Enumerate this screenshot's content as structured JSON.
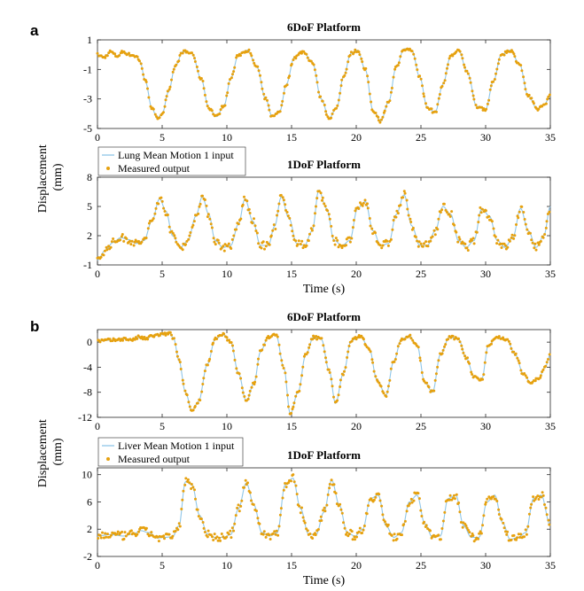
{
  "colors": {
    "input": "#8fc6e8",
    "measured": "#e6a10f",
    "axis": "#262626"
  },
  "chart_data": [
    {
      "id": "a-6dof",
      "panel": "a",
      "type": "line",
      "title": "6DoF Platform",
      "xlabel": "",
      "ylabel": "",
      "xlim": [
        0,
        35
      ],
      "ylim": [
        -5,
        1
      ],
      "xticks": [
        0,
        5,
        10,
        15,
        20,
        25,
        30,
        35
      ],
      "yticks": [
        -5,
        -3,
        -1,
        1
      ],
      "series": [
        {
          "name": "Lung Mean Motion 1 input",
          "style": "line",
          "x": [
            0,
            0.5,
            1,
            1.5,
            2,
            2.5,
            3,
            3.3,
            3.7,
            4.2,
            4.6,
            5.0,
            5.5,
            6.0,
            6.6,
            7.3,
            8.0,
            8.6,
            9.2,
            9.8,
            10.3,
            10.9,
            11.6,
            12.3,
            13.0,
            13.5,
            14.1,
            14.6,
            15.2,
            15.9,
            16.6,
            17.3,
            17.9,
            18.5,
            19.0,
            19.6,
            20.1,
            20.7,
            21.3,
            21.9,
            22.5,
            23.1,
            23.7,
            24.3,
            24.9,
            25.5,
            26.1,
            26.7,
            27.3,
            27.9,
            28.6,
            29.3,
            30.0,
            30.6,
            31.2,
            31.9,
            32.6,
            33.3,
            34.0,
            34.5,
            35
          ],
          "y": [
            0.0,
            -0.2,
            0.2,
            -0.1,
            0.2,
            0.0,
            -0.1,
            -0.5,
            -1.8,
            -3.6,
            -4.3,
            -4.0,
            -2.5,
            -0.8,
            0.2,
            0.1,
            -1.6,
            -3.6,
            -4.2,
            -3.4,
            -1.6,
            0.0,
            0.3,
            -0.8,
            -3.0,
            -4.2,
            -3.8,
            -2.0,
            -0.2,
            0.2,
            -0.5,
            -3.0,
            -4.3,
            -3.6,
            -1.5,
            0.1,
            0.3,
            -1.0,
            -3.8,
            -4.5,
            -3.2,
            -0.8,
            0.4,
            0.3,
            -1.5,
            -3.6,
            -3.9,
            -2.0,
            -0.1,
            0.3,
            -1.2,
            -3.5,
            -3.7,
            -1.8,
            0.0,
            0.3,
            -0.6,
            -2.8,
            -3.7,
            -3.4,
            -2.8
          ]
        },
        {
          "name": "Measured output",
          "style": "points",
          "follows": "Lung Mean Motion 1 input"
        }
      ]
    },
    {
      "id": "a-1dof",
      "panel": "a",
      "type": "line",
      "title": "1DoF Platform",
      "xlabel": "Time (s)",
      "ylabel": "",
      "xlim": [
        0,
        35
      ],
      "ylim": [
        -1,
        8
      ],
      "xticks": [
        0,
        5,
        10,
        15,
        20,
        25,
        30,
        35
      ],
      "yticks": [
        -1,
        2,
        5,
        8
      ],
      "legend": {
        "position": "top-left",
        "entries": [
          "Lung Mean Motion 1 input",
          "Measured output"
        ]
      },
      "series": [
        {
          "name": "Lung Mean Motion 1 input",
          "style": "line",
          "x": [
            0,
            0.6,
            1.2,
            1.8,
            2.4,
            3.0,
            3.6,
            4.2,
            4.8,
            5.3,
            5.8,
            6.4,
            7.0,
            7.6,
            8.1,
            8.6,
            9.1,
            9.7,
            10.3,
            10.9,
            11.4,
            12.0,
            12.6,
            13.2,
            13.7,
            14.2,
            14.8,
            15.4,
            16.0,
            16.6,
            17.1,
            17.7,
            18.3,
            18.9,
            19.5,
            20.1,
            20.7,
            21.3,
            21.9,
            22.5,
            23.1,
            23.7,
            24.3,
            24.9,
            25.5,
            26.1,
            26.7,
            27.3,
            27.9,
            28.5,
            29.1,
            29.7,
            30.3,
            30.9,
            31.5,
            32.1,
            32.7,
            33.3,
            33.9,
            34.5,
            35
          ],
          "y": [
            -0.5,
            0.5,
            1.3,
            1.8,
            1.6,
            1.2,
            1.5,
            3.5,
            5.8,
            4.5,
            2.0,
            0.8,
            1.5,
            4.0,
            6.0,
            4.2,
            1.5,
            0.8,
            1.0,
            3.2,
            5.8,
            3.5,
            1.0,
            1.0,
            3.0,
            6.0,
            3.8,
            1.2,
            1.0,
            2.5,
            6.7,
            4.8,
            1.5,
            1.0,
            1.5,
            4.8,
            5.5,
            2.5,
            1.0,
            1.2,
            4.2,
            6.2,
            3.0,
            1.0,
            1.0,
            2.5,
            5.0,
            4.2,
            1.5,
            0.8,
            1.5,
            4.8,
            4.0,
            1.5,
            0.8,
            1.8,
            4.8,
            2.5,
            0.8,
            2.0,
            5.0
          ]
        },
        {
          "name": "Measured output",
          "style": "points",
          "follows": "Lung Mean Motion 1 input"
        }
      ]
    },
    {
      "id": "b-6dof",
      "panel": "b",
      "type": "line",
      "title": "6DoF Platform",
      "xlabel": "",
      "ylabel": "",
      "xlim": [
        0,
        35
      ],
      "ylim": [
        -12,
        2
      ],
      "xticks": [
        0,
        5,
        10,
        15,
        20,
        25,
        30,
        35
      ],
      "yticks": [
        -12,
        -8,
        -4,
        0
      ],
      "series": [
        {
          "name": "Liver Mean Motion 1 input",
          "style": "line",
          "x": [
            0,
            1,
            2,
            2.8,
            3.2,
            3.8,
            4.2,
            5.0,
            5.6,
            5.9,
            6.3,
            6.8,
            7.3,
            7.8,
            8.5,
            9.1,
            9.7,
            10.3,
            10.9,
            11.5,
            12.1,
            12.6,
            13.2,
            13.8,
            14.4,
            14.9,
            15.5,
            16.1,
            16.7,
            17.3,
            17.9,
            18.4,
            19.0,
            19.6,
            20.3,
            21.0,
            21.6,
            22.3,
            22.9,
            23.5,
            24.1,
            24.7,
            25.3,
            25.9,
            26.5,
            27.2,
            27.9,
            28.5,
            29.1,
            29.7,
            30.2,
            30.9,
            31.6,
            32.3,
            32.9,
            33.5,
            34.1,
            34.6,
            35
          ],
          "y": [
            0.2,
            0.3,
            0.5,
            0.4,
            0.8,
            0.5,
            1.0,
            1.2,
            1.4,
            0.5,
            -3.0,
            -8.0,
            -11.0,
            -9.5,
            -3.5,
            0.5,
            1.2,
            0.0,
            -5.0,
            -9.5,
            -6.5,
            -1.5,
            0.8,
            1.2,
            -4.0,
            -11.5,
            -8.0,
            -2.0,
            0.8,
            0.5,
            -4.5,
            -9.8,
            -5.0,
            0.2,
            1.0,
            -1.0,
            -6.0,
            -8.5,
            -3.0,
            0.5,
            1.0,
            -0.5,
            -6.5,
            -8.0,
            -2.0,
            0.8,
            0.5,
            -2.5,
            -5.5,
            -6.0,
            -0.5,
            0.8,
            0.5,
            -2.0,
            -5.0,
            -6.5,
            -5.8,
            -4.0,
            -2.0
          ]
        },
        {
          "name": "Measured output",
          "style": "points",
          "follows": "Liver Mean Motion 1 input"
        }
      ]
    },
    {
      "id": "b-1dof",
      "panel": "b",
      "type": "line",
      "title": "1DoF Platform",
      "xlabel": "Time (s)",
      "ylabel": "",
      "xlim": [
        0,
        35
      ],
      "ylim": [
        -2,
        11
      ],
      "xticks": [
        0,
        5,
        10,
        15,
        20,
        25,
        30,
        35
      ],
      "yticks": [
        -2,
        2,
        6,
        10
      ],
      "legend": {
        "position": "top-left",
        "entries": [
          "Liver Mean Motion 1 input",
          "Measured output"
        ]
      },
      "series": [
        {
          "name": "Liver Mean Motion 1 input",
          "style": "line",
          "x": [
            0,
            1,
            2,
            2.8,
            3.3,
            4.0,
            4.6,
            5.2,
            5.8,
            6.3,
            6.8,
            7.3,
            7.9,
            8.5,
            9.1,
            9.7,
            10.3,
            10.9,
            11.5,
            12.1,
            12.7,
            13.3,
            13.9,
            14.5,
            15.1,
            15.7,
            16.3,
            16.9,
            17.5,
            18.1,
            18.7,
            19.3,
            19.9,
            20.5,
            21.1,
            21.7,
            22.3,
            22.9,
            23.5,
            24.1,
            24.7,
            25.3,
            25.9,
            26.5,
            27.1,
            27.7,
            28.3,
            28.9,
            29.5,
            30.1,
            30.7,
            31.3,
            31.9,
            32.5,
            33.1,
            33.7,
            34.3,
            35
          ],
          "y": [
            1.0,
            1.2,
            1.0,
            1.3,
            1.8,
            1.5,
            0.7,
            0.8,
            0.9,
            2.5,
            9.0,
            8.5,
            4.0,
            1.3,
            0.8,
            0.8,
            1.2,
            5.0,
            8.8,
            5.5,
            1.5,
            1.0,
            1.5,
            8.5,
            9.5,
            5.0,
            1.3,
            1.2,
            4.5,
            9.2,
            5.5,
            1.5,
            1.0,
            2.0,
            6.5,
            7.0,
            2.5,
            0.8,
            1.5,
            6.0,
            7.0,
            2.8,
            0.8,
            1.0,
            6.5,
            7.0,
            2.5,
            0.8,
            0.8,
            6.0,
            7.0,
            3.0,
            0.5,
            0.8,
            1.5,
            6.5,
            7.0,
            2.5
          ]
        },
        {
          "name": "Measured output",
          "style": "points",
          "follows": "Liver Mean Motion 1 input"
        }
      ]
    }
  ],
  "figure": {
    "panel_labels": [
      "a",
      "b"
    ],
    "shared_ylabel": "Displacement\n(mm)"
  }
}
